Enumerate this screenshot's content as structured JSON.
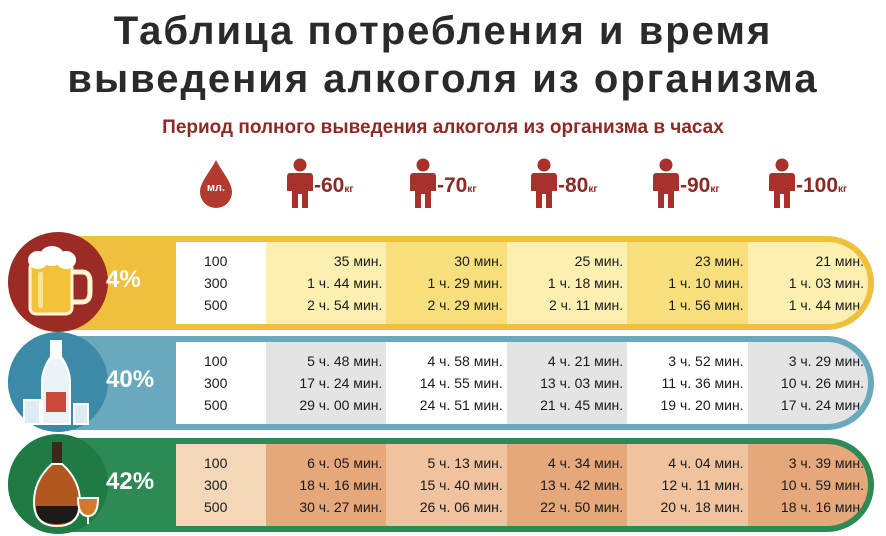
{
  "title_line1": "Таблица потребления и время",
  "title_line2": "выведения алкоголя из организма",
  "subtitle": "Период полного выведения алкоголя из организма в часах",
  "ml_label": "мл.",
  "weights": [
    {
      "value": "-60",
      "unit": "кг"
    },
    {
      "value": "-70",
      "unit": "кг"
    },
    {
      "value": "-80",
      "unit": "кг"
    },
    {
      "value": "-90",
      "unit": "кг"
    },
    {
      "value": "-100",
      "unit": "кг"
    }
  ],
  "rows": [
    {
      "percent": "4%",
      "icon": "beer-mug-icon",
      "ml": [
        "100",
        "300",
        "500"
      ],
      "cols": [
        [
          "35 мин.",
          "1 ч. 44 мин.",
          "2 ч. 54 мин."
        ],
        [
          "30 мин.",
          "1 ч. 29 мин.",
          "2 ч. 29 мин."
        ],
        [
          "25 мин.",
          "1 ч. 18 мин.",
          "2 ч. 11 мин."
        ],
        [
          "23 мин.",
          "1 ч. 10 мин.",
          "1 ч. 56 мин."
        ],
        [
          "21 мин.",
          "1 ч. 03 мин.",
          "1 ч. 44 мин."
        ]
      ]
    },
    {
      "percent": "40%",
      "icon": "vodka-bottle-icon",
      "ml": [
        "100",
        "300",
        "500"
      ],
      "cols": [
        [
          "5 ч. 48 мин.",
          "17 ч. 24 мин.",
          "29 ч. 00 мин."
        ],
        [
          "4 ч. 58 мин.",
          "14 ч. 55 мин.",
          "24 ч. 51 мин."
        ],
        [
          "4 ч. 21 мин.",
          "13 ч. 03 мин.",
          "21 ч. 45 мин."
        ],
        [
          "3 ч. 52 мин.",
          "11 ч. 36 мин.",
          "19 ч. 20 мин."
        ],
        [
          "3 ч. 29 мин.",
          "10 ч. 26 мин.",
          "17 ч. 24 мин."
        ]
      ]
    },
    {
      "percent": "42%",
      "icon": "cognac-bottle-icon",
      "ml": [
        "100",
        "300",
        "500"
      ],
      "cols": [
        [
          "6 ч. 05 мин.",
          "18 ч. 16 мин.",
          "30 ч. 27 мин."
        ],
        [
          "5 ч. 13 мин.",
          "15 ч. 40 мин.",
          "26 ч. 06 мин."
        ],
        [
          "4 ч. 34 мин.",
          "13 ч. 42 мин.",
          "22 ч. 50 мин."
        ],
        [
          "4 ч. 04 мин.",
          "12 ч. 11 мин.",
          "20 ч. 18 мин."
        ],
        [
          "3 ч. 39 мин.",
          "10 ч. 59 мин.",
          "18 ч. 16 мин."
        ]
      ]
    }
  ]
}
